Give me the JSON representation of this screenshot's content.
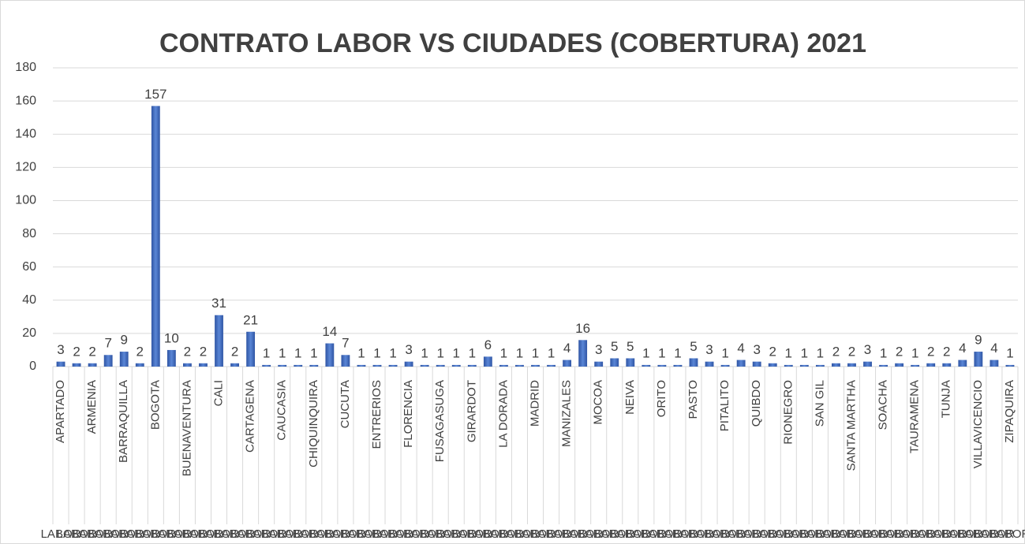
{
  "chart_data": {
    "type": "bar",
    "title": "CONTRATO LABOR VS CIUDADES (COBERTURA) 2021",
    "categories": [
      "APARTADO",
      null,
      "ARMENIA",
      null,
      "BARRAQUILLA",
      null,
      "BOGOTA",
      null,
      "BUENAVENTURA",
      null,
      "CALI",
      null,
      "CARTAGENA",
      null,
      "CAUCASIA",
      null,
      "CHIQUINQUIRA",
      null,
      "CUCUTA",
      null,
      "ENTRERIOS",
      null,
      "FLORENCIA",
      null,
      "FUSAGASUGA",
      null,
      "GIRARDOT",
      null,
      "LA DORADA",
      null,
      "MADRID",
      null,
      "MANIZALES",
      null,
      "MOCOA",
      null,
      "NEIVA",
      null,
      "ORITO",
      null,
      "PASTO",
      null,
      "PITALITO",
      null,
      "QUIBDO",
      null,
      "RIONEGRO",
      null,
      "SAN GIL",
      null,
      "SANTA MARTHA",
      null,
      "SOACHA",
      null,
      "TAURAMENA",
      null,
      "TUNJA",
      null,
      "VILLAVICENCIO",
      null,
      "ZIPAQUIRA"
    ],
    "values": [
      3,
      2,
      2,
      7,
      9,
      2,
      157,
      10,
      2,
      2,
      31,
      2,
      21,
      1,
      1,
      1,
      1,
      14,
      7,
      1,
      1,
      1,
      3,
      1,
      1,
      1,
      1,
      6,
      1,
      1,
      1,
      1,
      4,
      16,
      3,
      5,
      5,
      1,
      1,
      1,
      5,
      3,
      1,
      4,
      3,
      2,
      1,
      1,
      1,
      2,
      2,
      3,
      1,
      2,
      1,
      2,
      2,
      4,
      9,
      4,
      1
    ],
    "group_label": "LABOR",
    "color": "#4472c4",
    "ylim": [
      0,
      180
    ],
    "yticks": [
      0,
      20,
      40,
      60,
      80,
      100,
      120,
      140,
      160,
      180
    ],
    "grid": true
  }
}
